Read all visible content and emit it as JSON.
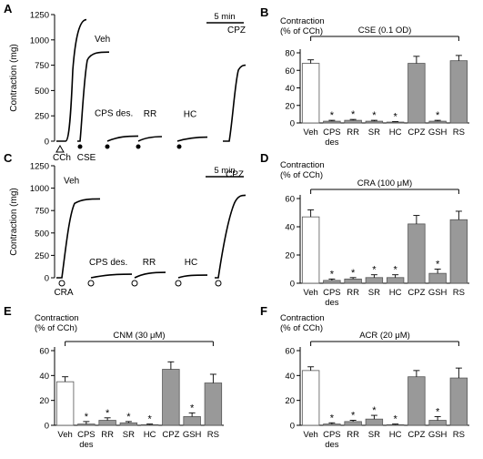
{
  "panel_letters": {
    "A": "A",
    "B": "B",
    "C": "C",
    "D": "D",
    "E": "E",
    "F": "F"
  },
  "chart_data": [
    {
      "panel": "A",
      "type": "line",
      "ylabel": "Contraction (mg)",
      "yticks": [
        0,
        250,
        500,
        750,
        1000,
        1250
      ],
      "ylim": [
        0,
        1250
      ],
      "scale_bar": "5 min",
      "baseline_labels": [
        "CCh",
        "CSE"
      ],
      "series": [
        {
          "name": "CCh",
          "values": [
            0,
            1200
          ]
        },
        {
          "name": "Veh",
          "values": [
            0,
            880
          ]
        },
        {
          "name": "CPS des.",
          "values": [
            0,
            50
          ]
        },
        {
          "name": "RR",
          "values": [
            0,
            45
          ]
        },
        {
          "name": "HC",
          "values": [
            0,
            40
          ]
        },
        {
          "name": "CPZ",
          "values": [
            0,
            750
          ]
        }
      ]
    },
    {
      "panel": "B",
      "type": "bar",
      "ylabel_line1": "Contraction",
      "ylabel_line2": "(% of CCh)",
      "bracket_label": "CSE (0.1 OD)",
      "categories": [
        "Veh",
        "CPS des",
        "RR",
        "SR",
        "HC",
        "CPZ",
        "GSH",
        "RS"
      ],
      "values": [
        68,
        2,
        3,
        2,
        1,
        68,
        2,
        71
      ],
      "errors": [
        4,
        1,
        1,
        1,
        0.5,
        8,
        1,
        6
      ],
      "significant": [
        false,
        true,
        true,
        true,
        true,
        false,
        true,
        false
      ],
      "star": "*",
      "ylim": [
        0,
        80
      ],
      "yticks": [
        0,
        20,
        40,
        60,
        80
      ]
    },
    {
      "panel": "C",
      "type": "line",
      "ylabel": "Contraction (mg)",
      "yticks": [
        0,
        250,
        500,
        750,
        1000,
        1250
      ],
      "ylim": [
        0,
        1250
      ],
      "scale_bar": "5 min",
      "baseline_labels": [
        "CRA"
      ],
      "series": [
        {
          "name": "Veh",
          "values": [
            0,
            880
          ]
        },
        {
          "name": "CPS des.",
          "values": [
            0,
            40
          ]
        },
        {
          "name": "RR",
          "values": [
            0,
            60
          ]
        },
        {
          "name": "HC",
          "values": [
            0,
            30
          ]
        },
        {
          "name": "CPZ",
          "values": [
            0,
            920
          ]
        }
      ]
    },
    {
      "panel": "D",
      "type": "bar",
      "ylabel_line1": "Contraction",
      "ylabel_line2": "(% of CCh)",
      "bracket_label": "CRA (100 μM)",
      "categories": [
        "Veh",
        "CPS des",
        "RR",
        "SR",
        "HC",
        "CPZ",
        "GSH",
        "RS"
      ],
      "values": [
        47,
        2,
        3,
        4,
        4,
        42,
        7,
        45
      ],
      "errors": [
        5,
        1,
        1,
        2,
        2,
        6,
        3,
        6
      ],
      "significant": [
        false,
        true,
        true,
        true,
        true,
        false,
        true,
        false
      ],
      "star": "*",
      "ylim": [
        0,
        60
      ],
      "yticks": [
        0,
        20,
        40,
        60
      ]
    },
    {
      "panel": "E",
      "type": "bar",
      "ylabel_line1": "Contraction",
      "ylabel_line2": "(% of CCh)",
      "bracket_label": "CNM (30 μM)",
      "categories": [
        "Veh",
        "CPS des",
        "RR",
        "SR",
        "HC",
        "CPZ",
        "GSH",
        "RS"
      ],
      "values": [
        35,
        1,
        4,
        2,
        0.5,
        45,
        7,
        34
      ],
      "errors": [
        4,
        2,
        2,
        1,
        0.5,
        6,
        3,
        7
      ],
      "significant": [
        false,
        true,
        true,
        true,
        true,
        false,
        true,
        false
      ],
      "star": "*",
      "ylim": [
        0,
        60
      ],
      "yticks": [
        0,
        20,
        40,
        60
      ]
    },
    {
      "panel": "F",
      "type": "bar",
      "ylabel_line1": "Contraction",
      "ylabel_line2": "(% of CCh)",
      "bracket_label": "ACR (20 μM)",
      "categories": [
        "Veh",
        "CPS des",
        "RR",
        "SR",
        "HC",
        "CPZ",
        "GSH",
        "RS"
      ],
      "values": [
        44,
        1,
        3,
        5,
        0.5,
        39,
        4,
        38
      ],
      "errors": [
        3,
        1,
        1,
        3,
        0.5,
        5,
        3,
        8
      ],
      "significant": [
        false,
        true,
        true,
        true,
        true,
        false,
        true,
        false
      ],
      "star": "*",
      "ylim": [
        0,
        60
      ],
      "yticks": [
        0,
        20,
        40,
        60
      ]
    }
  ]
}
